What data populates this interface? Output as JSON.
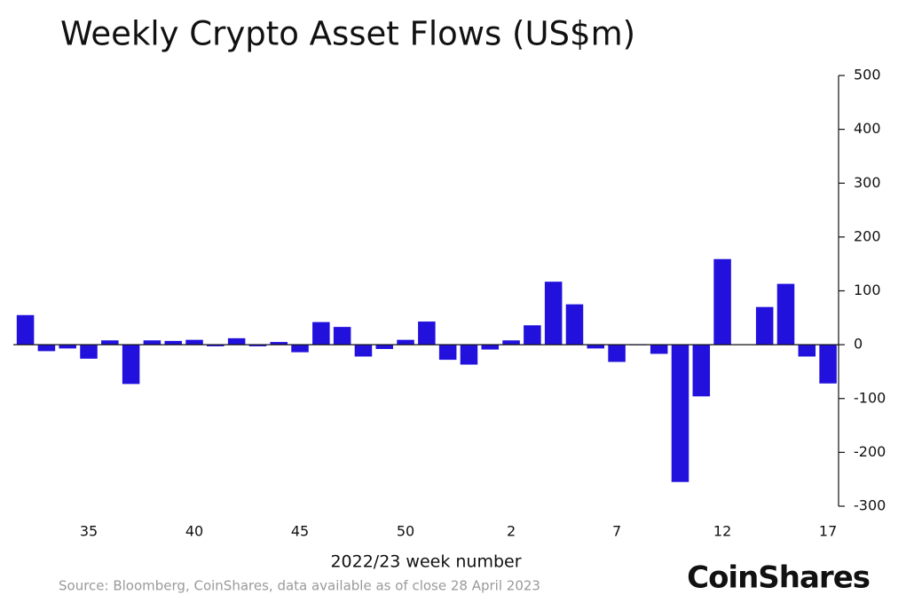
{
  "chart_data": {
    "type": "bar",
    "title": "Weekly Crypto Asset Flows (US$m)",
    "x_label": "2022/23 week number",
    "source": "Source: Bloomberg, CoinShares, data available as of close 28 April 2023",
    "brand": "CoinShares",
    "categories": [
      null,
      null,
      null,
      "35",
      null,
      null,
      null,
      null,
      "40",
      null,
      null,
      null,
      null,
      "45",
      null,
      null,
      null,
      null,
      "50",
      null,
      null,
      null,
      null,
      "2",
      null,
      null,
      null,
      null,
      "7",
      null,
      null,
      null,
      null,
      "12",
      null,
      null,
      null,
      null,
      "17"
    ],
    "values": [
      55,
      -12,
      -7,
      -26,
      8,
      -73,
      8,
      7,
      9,
      -3,
      12,
      -3,
      5,
      -14,
      42,
      33,
      -22,
      -8,
      9,
      43,
      -28,
      -37,
      -9,
      8,
      36,
      117,
      75,
      -7,
      -32,
      -1,
      -17,
      -255,
      -96,
      159,
      1,
      70,
      113,
      -22,
      -72
    ],
    "color": "#2211dd",
    "ylim": [
      -300,
      500
    ],
    "yticks": [
      500,
      400,
      300,
      200,
      100,
      0,
      -100,
      -200,
      -300
    ],
    "y_axis_side": "right"
  }
}
